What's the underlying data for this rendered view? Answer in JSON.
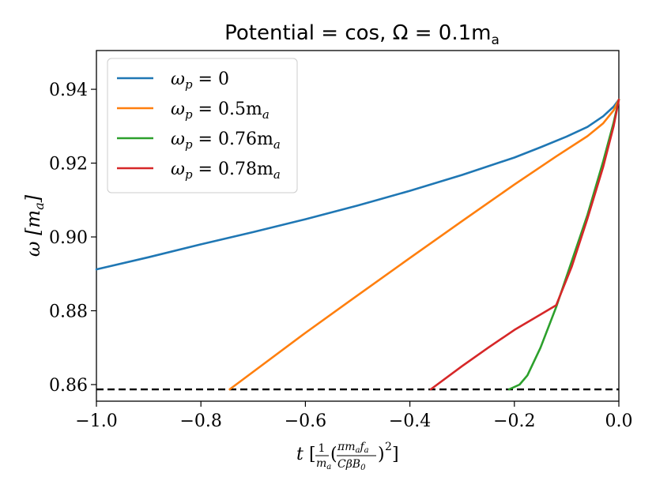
{
  "chart_data": {
    "type": "line",
    "title": "Potential = cos, Ω = 0.1m",
    "title_sub": "a",
    "xlabel": {
      "t": "t",
      "frac_num": "1",
      "frac_den": "m",
      "frac_den_sub": "a",
      "inner_num": "πm",
      "inner_num_sub1": "a",
      "inner_num_f": "f",
      "inner_num_sub2": "a",
      "inner_den": "CβB",
      "inner_den_sub": "0",
      "power": "2"
    },
    "ylabel": {
      "main": "ω [m",
      "sub": "a",
      "close": "]"
    },
    "xlim": [
      -1.0,
      0.0
    ],
    "ylim": [
      0.8555,
      0.9505
    ],
    "xticks": [
      -1.0,
      -0.8,
      -0.6,
      -0.4,
      -0.2,
      0.0
    ],
    "xtick_labels": [
      "−1.0",
      "−0.8",
      "−0.6",
      "−0.4",
      "−0.2",
      "0.0"
    ],
    "yticks": [
      0.86,
      0.88,
      0.9,
      0.92,
      0.94
    ],
    "ytick_labels": [
      "0.86",
      "0.88",
      "0.90",
      "0.92",
      "0.94"
    ],
    "hline": {
      "y": 0.8587,
      "style": "dashed",
      "color": "#000000"
    },
    "legend_position": "upper-left",
    "series": [
      {
        "name": "ω_p = 0",
        "legend_main": "ω",
        "legend_sub": "p",
        "legend_rest": " = 0",
        "color": "#1f77b4",
        "x": [
          -1.0,
          -0.9,
          -0.8,
          -0.7,
          -0.6,
          -0.5,
          -0.4,
          -0.3,
          -0.2,
          -0.15,
          -0.1,
          -0.06,
          -0.03,
          -0.01,
          0.0
        ],
        "y": [
          0.8912,
          0.8945,
          0.898,
          0.9013,
          0.9048,
          0.9085,
          0.9125,
          0.9168,
          0.9215,
          0.9243,
          0.9272,
          0.9298,
          0.9327,
          0.9353,
          0.9372
        ]
      },
      {
        "name": "ω_p = 0.5m_a",
        "legend_main": "ω",
        "legend_sub": "p",
        "legend_rest": " = 0.5m",
        "legend_rest_sub": "a",
        "color": "#ff7f0e",
        "x": [
          -0.745,
          -0.6,
          -0.5,
          -0.4,
          -0.3,
          -0.2,
          -0.12,
          -0.06,
          -0.03,
          -0.01,
          0.0
        ],
        "y": [
          0.8587,
          0.874,
          0.8842,
          0.8943,
          0.9043,
          0.9142,
          0.9218,
          0.9273,
          0.9308,
          0.9343,
          0.9372
        ]
      },
      {
        "name": "ω_p = 0.76m_a",
        "legend_main": "ω",
        "legend_sub": "p",
        "legend_rest": " = 0.76m",
        "legend_rest_sub": "a",
        "color": "#2ca02c",
        "x": [
          -0.21,
          -0.19,
          -0.175,
          -0.15,
          -0.12,
          -0.09,
          -0.06,
          -0.03,
          -0.01,
          0.0
        ],
        "y": [
          0.8587,
          0.86,
          0.8625,
          0.87,
          0.881,
          0.8935,
          0.906,
          0.9205,
          0.931,
          0.9372
        ]
      },
      {
        "name": "ω_p = 0.78m_a",
        "legend_main": "ω",
        "legend_sub": "p",
        "legend_rest": " = 0.78m",
        "legend_rest_sub": "a",
        "color": "#d62728",
        "x": [
          -0.36,
          -0.3,
          -0.25,
          -0.2,
          -0.15,
          -0.12,
          -0.09,
          -0.06,
          -0.03,
          -0.01,
          0.0
        ],
        "y": [
          0.8587,
          0.865,
          0.87,
          0.8748,
          0.879,
          0.8815,
          0.892,
          0.905,
          0.919,
          0.93,
          0.9372
        ]
      }
    ]
  }
}
